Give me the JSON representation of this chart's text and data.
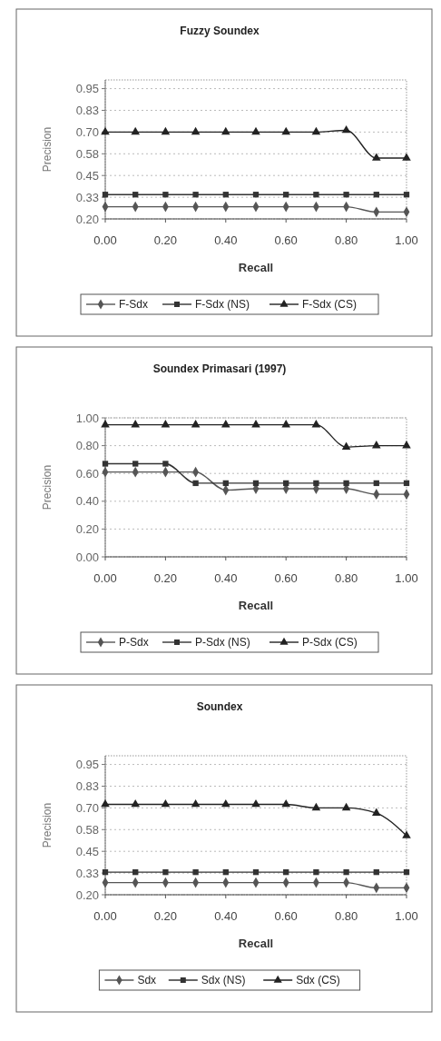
{
  "chart_data": [
    {
      "type": "line",
      "title": "Fuzzy Soundex",
      "xlabel": "Recall",
      "ylabel": "Precision",
      "x": [
        0,
        0.1,
        0.2,
        0.3,
        0.4,
        0.5,
        0.6,
        0.7,
        0.8,
        0.9,
        1.0
      ],
      "xlim": [
        0,
        1
      ],
      "xticks": [
        {
          "value": 0,
          "label": "0.00"
        },
        {
          "value": 0.2,
          "label": "0.20"
        },
        {
          "value": 0.4,
          "label": "0.40"
        },
        {
          "value": 0.6,
          "label": "0.60"
        },
        {
          "value": 0.8,
          "label": "0.80"
        },
        {
          "value": 1,
          "label": "1.00"
        }
      ],
      "ylim": [
        0.2,
        1.0
      ],
      "yticks": [
        {
          "value": 0.2,
          "label": "0.20"
        },
        {
          "value": 0.325,
          "label": "0.33"
        },
        {
          "value": 0.45,
          "label": "0.45"
        },
        {
          "value": 0.575,
          "label": "0.58"
        },
        {
          "value": 0.7,
          "label": "0.70"
        },
        {
          "value": 0.825,
          "label": "0.83"
        },
        {
          "value": 0.95,
          "label": "0.95"
        }
      ],
      "grid": "y",
      "legend": "bottom",
      "series": [
        {
          "name": "F-Sdx",
          "color": "#555555",
          "marker": "diamond",
          "values": [
            0.27,
            0.27,
            0.27,
            0.27,
            0.27,
            0.27,
            0.27,
            0.27,
            0.27,
            0.24,
            0.24
          ]
        },
        {
          "name": "F-Sdx (NS)",
          "color": "#333333",
          "marker": "square",
          "values": [
            0.34,
            0.34,
            0.34,
            0.34,
            0.34,
            0.34,
            0.34,
            0.34,
            0.34,
            0.34,
            0.34
          ]
        },
        {
          "name": "F-Sdx (CS)",
          "color": "#222222",
          "marker": "triangle",
          "values": [
            0.7,
            0.7,
            0.7,
            0.7,
            0.7,
            0.7,
            0.7,
            0.7,
            0.71,
            0.55,
            0.55
          ]
        }
      ]
    },
    {
      "type": "line",
      "title": "Soundex Primasari (1997)",
      "xlabel": "Recall",
      "ylabel": "Precision",
      "x": [
        0,
        0.1,
        0.2,
        0.3,
        0.4,
        0.5,
        0.6,
        0.7,
        0.8,
        0.9,
        1.0
      ],
      "xlim": [
        0,
        1
      ],
      "xticks": [
        {
          "value": 0,
          "label": "0.00"
        },
        {
          "value": 0.2,
          "label": "0.20"
        },
        {
          "value": 0.4,
          "label": "0.40"
        },
        {
          "value": 0.6,
          "label": "0.60"
        },
        {
          "value": 0.8,
          "label": "0.80"
        },
        {
          "value": 1,
          "label": "1.00"
        }
      ],
      "ylim": [
        0,
        1
      ],
      "yticks": [
        {
          "value": 0,
          "label": "0.00"
        },
        {
          "value": 0.2,
          "label": "0.20"
        },
        {
          "value": 0.4,
          "label": "0.40"
        },
        {
          "value": 0.6,
          "label": "0.60"
        },
        {
          "value": 0.8,
          "label": "0.80"
        },
        {
          "value": 1,
          "label": "1.00"
        }
      ],
      "grid": "y",
      "legend": "bottom",
      "series": [
        {
          "name": "P-Sdx",
          "color": "#555555",
          "marker": "diamond",
          "values": [
            0.61,
            0.61,
            0.61,
            0.61,
            0.48,
            0.49,
            0.49,
            0.49,
            0.49,
            0.45,
            0.45
          ]
        },
        {
          "name": "P-Sdx (NS)",
          "color": "#333333",
          "marker": "square",
          "values": [
            0.67,
            0.67,
            0.67,
            0.53,
            0.53,
            0.53,
            0.53,
            0.53,
            0.53,
            0.53,
            0.53
          ]
        },
        {
          "name": "P-Sdx (CS)",
          "color": "#222222",
          "marker": "triangle",
          "values": [
            0.95,
            0.95,
            0.95,
            0.95,
            0.95,
            0.95,
            0.95,
            0.95,
            0.79,
            0.8,
            0.8
          ]
        }
      ]
    },
    {
      "type": "line",
      "title": "Soundex",
      "xlabel": "Recall",
      "ylabel": "Precision",
      "x": [
        0,
        0.1,
        0.2,
        0.3,
        0.4,
        0.5,
        0.6,
        0.7,
        0.8,
        0.9,
        1.0
      ],
      "xlim": [
        0,
        1
      ],
      "xticks": [
        {
          "value": 0,
          "label": "0.00"
        },
        {
          "value": 0.2,
          "label": "0.20"
        },
        {
          "value": 0.4,
          "label": "0.40"
        },
        {
          "value": 0.6,
          "label": "0.60"
        },
        {
          "value": 0.8,
          "label": "0.80"
        },
        {
          "value": 1,
          "label": "1.00"
        }
      ],
      "ylim": [
        0.2,
        1.0
      ],
      "yticks": [
        {
          "value": 0.2,
          "label": "0.20"
        },
        {
          "value": 0.325,
          "label": "0.33"
        },
        {
          "value": 0.45,
          "label": "0.45"
        },
        {
          "value": 0.575,
          "label": "0.58"
        },
        {
          "value": 0.7,
          "label": "0.70"
        },
        {
          "value": 0.825,
          "label": "0.83"
        },
        {
          "value": 0.95,
          "label": "0.95"
        }
      ],
      "grid": "y",
      "legend": "bottom",
      "series": [
        {
          "name": "Sdx",
          "color": "#555555",
          "marker": "diamond",
          "values": [
            0.27,
            0.27,
            0.27,
            0.27,
            0.27,
            0.27,
            0.27,
            0.27,
            0.27,
            0.24,
            0.24
          ]
        },
        {
          "name": "Sdx (NS)",
          "color": "#333333",
          "marker": "square",
          "values": [
            0.33,
            0.33,
            0.33,
            0.33,
            0.33,
            0.33,
            0.33,
            0.33,
            0.33,
            0.33,
            0.33
          ]
        },
        {
          "name": "Sdx (CS)",
          "color": "#222222",
          "marker": "triangle",
          "values": [
            0.72,
            0.72,
            0.72,
            0.72,
            0.72,
            0.72,
            0.72,
            0.7,
            0.7,
            0.67,
            0.54
          ]
        }
      ]
    }
  ]
}
